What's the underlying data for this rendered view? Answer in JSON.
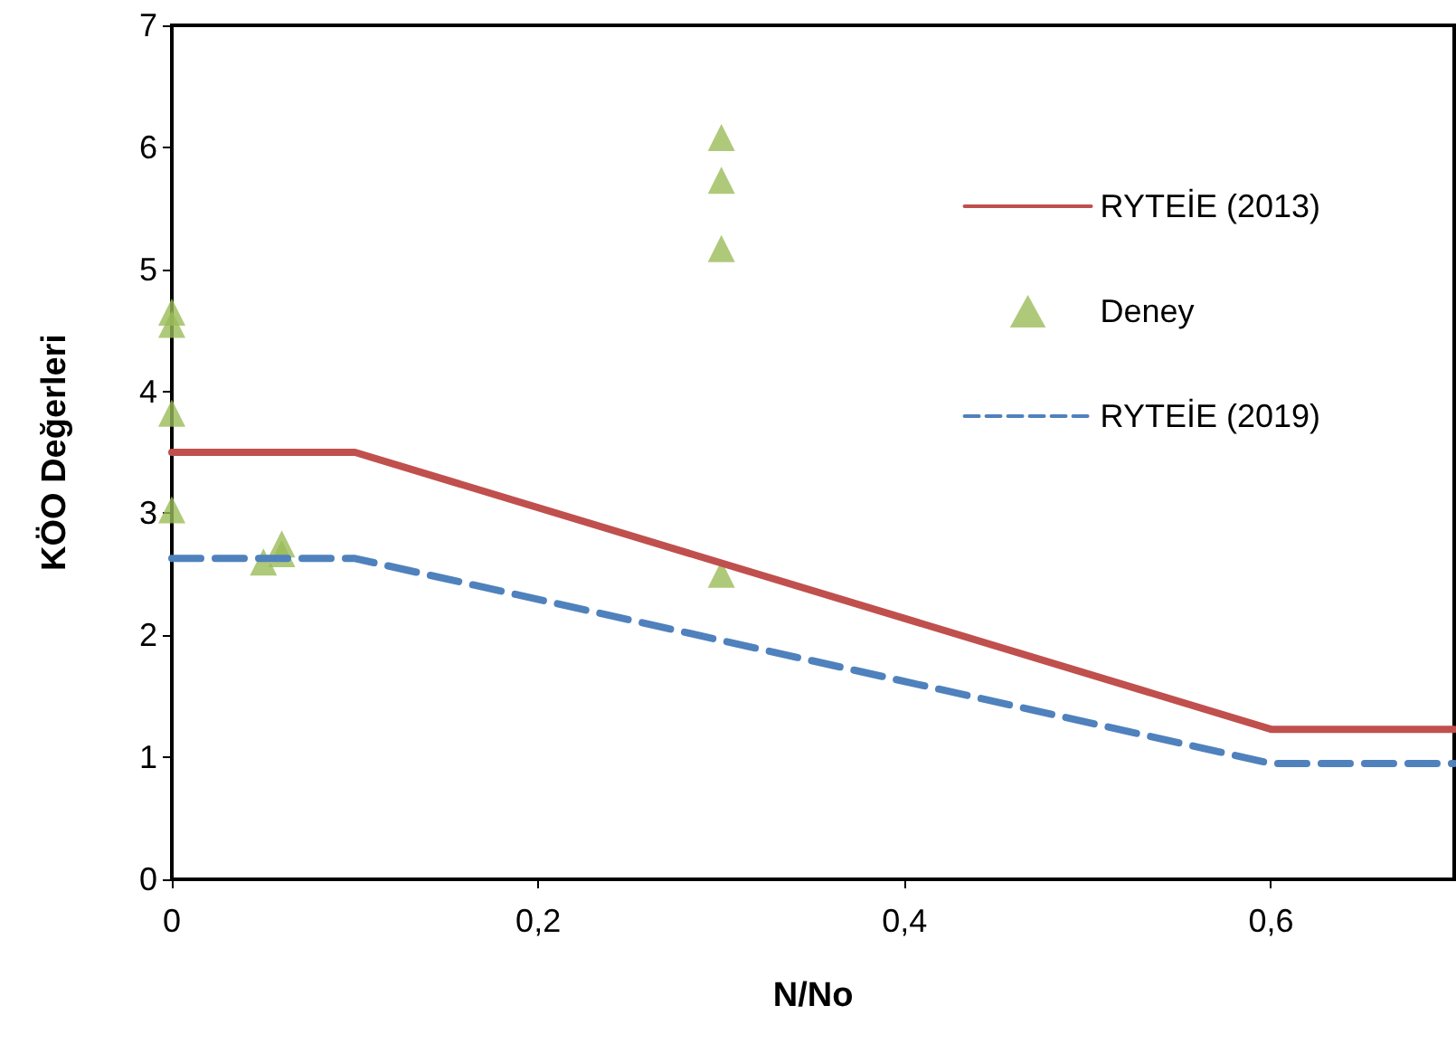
{
  "chart_data": {
    "type": "line",
    "xlabel": "N/No",
    "ylabel": "KÖO Değerleri",
    "xlim": [
      0,
      0.7
    ],
    "ylim": [
      0,
      7
    ],
    "xticks": [
      0,
      {
        "value": 0.2,
        "label": "0,2"
      },
      {
        "value": 0.4,
        "label": "0,4"
      },
      {
        "value": 0.6,
        "label": "0,6"
      }
    ],
    "yticks": [
      0,
      1,
      2,
      3,
      4,
      5,
      6,
      7
    ],
    "grid": false,
    "legend": "right",
    "series": [
      {
        "name": "RYTEİE (2013)",
        "type": "line",
        "color": "#c0504d",
        "line_style": "solid",
        "marker": "none",
        "x": [
          0,
          0.1,
          0.6,
          0.7
        ],
        "values": [
          3.5,
          3.5,
          1.23,
          1.23
        ]
      },
      {
        "name": "Deney",
        "type": "scatter",
        "color": "#9bbb59",
        "marker": "triangle",
        "x": [
          0,
          0,
          0,
          0,
          0.05,
          0.06,
          0.06,
          0.3,
          0.3,
          0.3,
          0.3
        ],
        "values": [
          4.65,
          4.55,
          3.82,
          3.03,
          2.6,
          2.75,
          2.67,
          6.08,
          5.73,
          5.17,
          2.5
        ]
      },
      {
        "name": "RYTEİE (2019)",
        "type": "line",
        "color": "#4f81bd",
        "line_style": "dashed",
        "marker": "none",
        "x": [
          0,
          0.1,
          0.6,
          0.7
        ],
        "values": [
          2.63,
          2.63,
          0.95,
          0.95
        ]
      }
    ]
  }
}
